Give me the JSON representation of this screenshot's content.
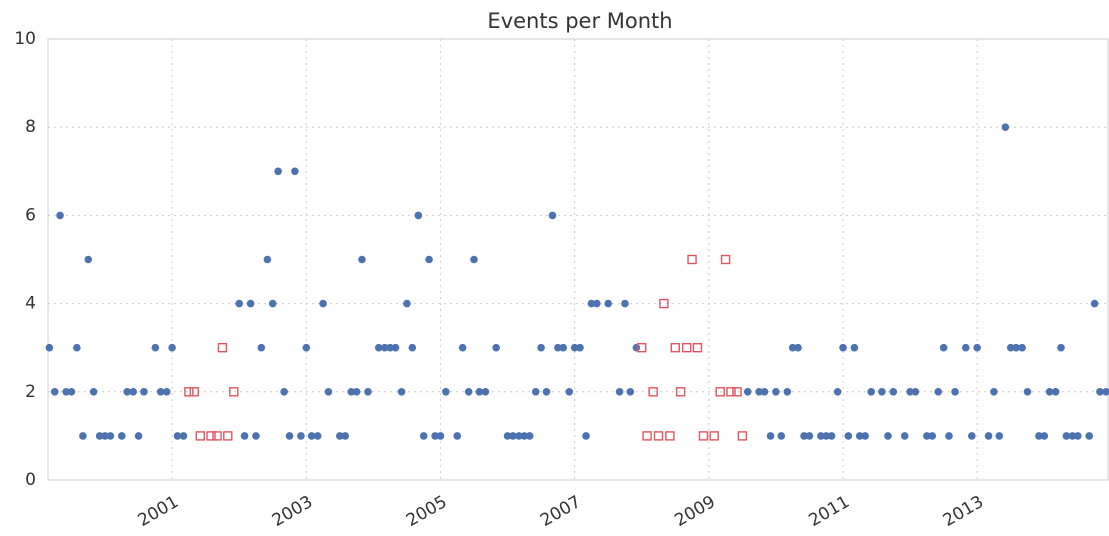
{
  "chart_data": {
    "type": "scatter",
    "title": "Events per Month",
    "xlim": [
      1999.15,
      2014.95
    ],
    "xticks": [
      2001,
      2003,
      2005,
      2007,
      2009,
      2011,
      2013
    ],
    "ylim": [
      0,
      10
    ],
    "yticks": [
      0,
      2,
      4,
      6,
      8,
      10
    ],
    "grid": true,
    "series": [
      {
        "color": "#4c72b0",
        "marker": "circle",
        "x": [
          1999.17,
          1999.25,
          1999.33,
          1999.42,
          1999.5,
          1999.58,
          1999.67,
          1999.75,
          1999.83,
          1999.92,
          2000.0,
          2000.08,
          2000.25,
          2000.33,
          2000.42,
          2000.5,
          2000.58,
          2000.75,
          2000.83,
          2000.92,
          2001.0,
          2001.08,
          2001.17,
          2002.0,
          2002.08,
          2002.17,
          2002.25,
          2002.33,
          2002.42,
          2002.5,
          2002.58,
          2002.67,
          2002.75,
          2002.83,
          2002.92,
          2003.0,
          2003.08,
          2003.17,
          2003.25,
          2003.33,
          2003.5,
          2003.58,
          2003.67,
          2003.75,
          2003.83,
          2003.92,
          2004.08,
          2004.17,
          2004.25,
          2004.33,
          2004.42,
          2004.5,
          2004.58,
          2004.67,
          2004.75,
          2004.83,
          2004.92,
          2005.0,
          2005.08,
          2005.25,
          2005.33,
          2005.42,
          2005.5,
          2005.58,
          2005.67,
          2005.83,
          2006.0,
          2006.08,
          2006.17,
          2006.25,
          2006.33,
          2006.42,
          2006.5,
          2006.58,
          2006.67,
          2006.75,
          2006.83,
          2006.92,
          2007.0,
          2007.08,
          2007.17,
          2007.25,
          2007.33,
          2007.5,
          2007.67,
          2007.75,
          2007.83,
          2007.92,
          2009.58,
          2009.75,
          2009.83,
          2009.92,
          2010.0,
          2010.08,
          2010.17,
          2010.25,
          2010.33,
          2010.42,
          2010.5,
          2010.67,
          2010.75,
          2010.83,
          2010.92,
          2011.0,
          2011.08,
          2011.17,
          2011.25,
          2011.33,
          2011.42,
          2011.58,
          2011.67,
          2011.75,
          2011.92,
          2012.0,
          2012.08,
          2012.25,
          2012.33,
          2012.42,
          2012.5,
          2012.58,
          2012.67,
          2012.83,
          2012.92,
          2013.0,
          2013.17,
          2013.25,
          2013.33,
          2013.42,
          2013.5,
          2013.58,
          2013.67,
          2013.75,
          2013.92,
          2014.0,
          2014.08,
          2014.17,
          2014.25,
          2014.33,
          2014.42,
          2014.5,
          2014.67,
          2014.75,
          2014.83,
          2014.92
        ],
        "values": [
          3,
          2,
          6,
          2,
          2,
          3,
          1,
          5,
          2,
          1,
          1,
          1,
          1,
          2,
          2,
          1,
          2,
          3,
          2,
          2,
          3,
          1,
          1,
          4,
          1,
          4,
          1,
          3,
          5,
          4,
          7,
          2,
          1,
          7,
          1,
          3,
          1,
          1,
          4,
          2,
          1,
          1,
          2,
          2,
          5,
          2,
          3,
          3,
          3,
          3,
          2,
          4,
          3,
          6,
          1,
          5,
          1,
          1,
          2,
          1,
          3,
          2,
          5,
          2,
          2,
          3,
          1,
          1,
          1,
          1,
          1,
          2,
          3,
          2,
          6,
          3,
          3,
          2,
          3,
          3,
          1,
          4,
          4,
          4,
          2,
          4,
          2,
          3,
          2,
          2,
          2,
          1,
          2,
          1,
          2,
          3,
          3,
          1,
          1,
          1,
          1,
          1,
          2,
          3,
          1,
          3,
          1,
          1,
          2,
          2,
          1,
          2,
          1,
          2,
          2,
          1,
          1,
          2,
          3,
          1,
          2,
          3,
          1,
          3,
          1,
          2,
          1,
          8,
          3,
          3,
          3,
          2,
          1,
          1,
          2,
          2,
          3,
          1,
          1,
          1,
          1,
          4,
          2,
          2
        ]
      },
      {
        "color": "#e05560",
        "marker": "square",
        "x": [
          2001.25,
          2001.33,
          2001.42,
          2001.58,
          2001.67,
          2001.75,
          2001.83,
          2001.92,
          2008.0,
          2008.08,
          2008.17,
          2008.25,
          2008.33,
          2008.42,
          2008.5,
          2008.58,
          2008.67,
          2008.75,
          2008.83,
          2008.92,
          2009.08,
          2009.17,
          2009.25,
          2009.33,
          2009.42,
          2009.5
        ],
        "values": [
          2,
          2,
          1,
          1,
          1,
          3,
          1,
          2,
          3,
          1,
          2,
          1,
          4,
          1,
          3,
          2,
          3,
          5,
          3,
          1,
          1,
          2,
          5,
          2,
          2,
          1
        ]
      }
    ]
  }
}
